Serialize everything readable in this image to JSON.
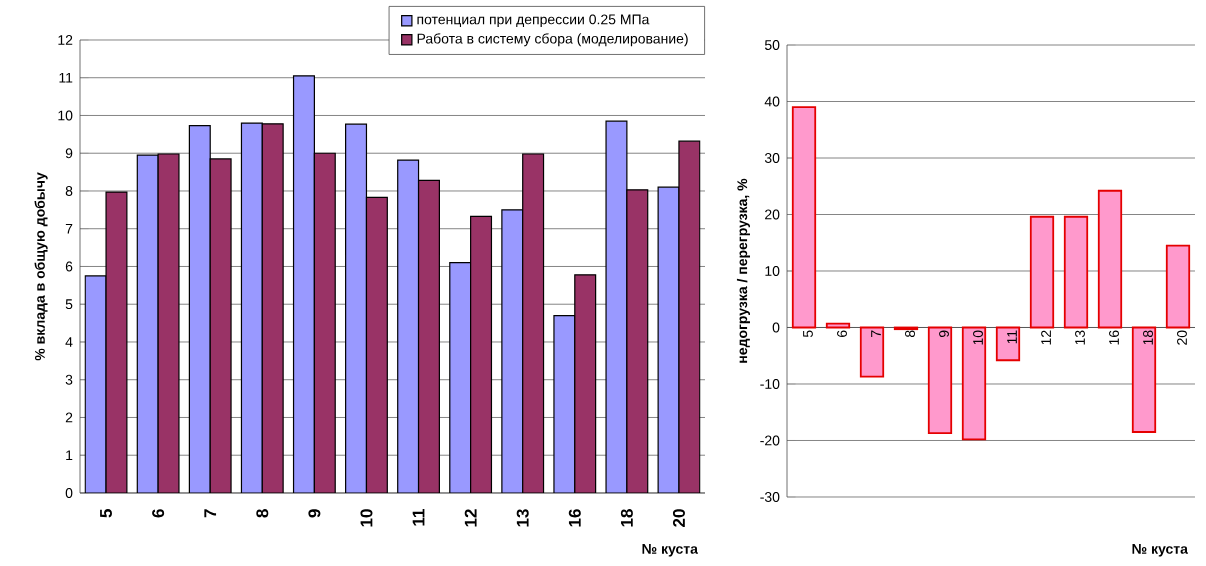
{
  "chart_data": [
    {
      "type": "bar",
      "xlabel": "№ куста",
      "ylabel": "% вклада в общую добычу",
      "categories": [
        "5",
        "6",
        "7",
        "8",
        "9",
        "10",
        "11",
        "12",
        "13",
        "16",
        "18",
        "20"
      ],
      "series": [
        {
          "name": "потенциал при депрессии 0.25 МПа",
          "color": "#9999ff",
          "values": [
            5.75,
            8.95,
            9.73,
            9.8,
            11.05,
            9.77,
            8.82,
            6.1,
            7.5,
            4.7,
            9.85,
            8.1
          ]
        },
        {
          "name": "Работа в систему сбора (моделирование)",
          "color": "#993366",
          "values": [
            7.97,
            8.98,
            8.85,
            9.78,
            9.0,
            7.83,
            8.28,
            7.33,
            8.98,
            5.78,
            8.03,
            9.32
          ]
        }
      ],
      "ylim": [
        0,
        12
      ],
      "yticks": [
        0,
        1,
        2,
        3,
        4,
        5,
        6,
        7,
        8,
        9,
        10,
        11,
        12
      ],
      "grid": "y",
      "legend": "top right"
    },
    {
      "type": "bar",
      "xlabel": "№ куста",
      "ylabel": "недогрузка / перегрузка, %",
      "categories": [
        "5",
        "6",
        "7",
        "8",
        "9",
        "10",
        "11",
        "12",
        "13",
        "16",
        "18",
        "20"
      ],
      "values": [
        39,
        0.7,
        -8.7,
        -0.3,
        -18.7,
        -19.8,
        -5.8,
        19.6,
        19.6,
        24.2,
        -18.5,
        14.5
      ],
      "color": "#ff99cc",
      "ylim": [
        -30,
        50
      ],
      "yticks": [
        -30,
        -20,
        -10,
        0,
        10,
        20,
        30,
        40,
        50
      ],
      "grid": "y"
    }
  ]
}
